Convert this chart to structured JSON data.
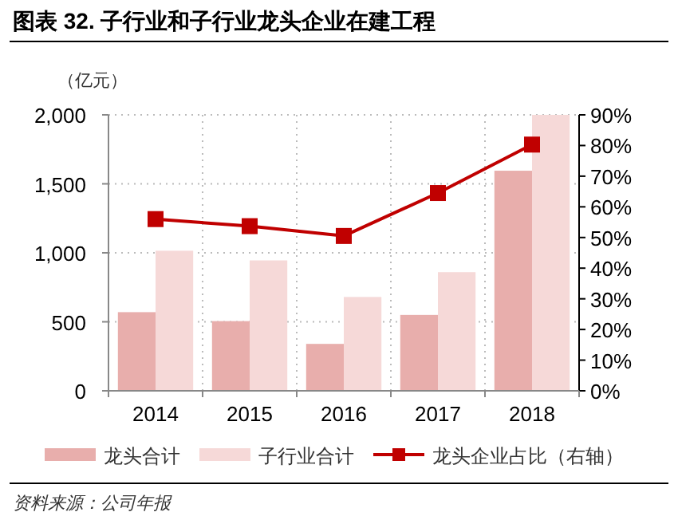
{
  "chart_data": {
    "type": "bar",
    "title": "图表 32. 子行业和子行业龙头企业在建工程",
    "ylabel": "（亿元）",
    "categories": [
      "2014",
      "2015",
      "2016",
      "2017",
      "2018"
    ],
    "series": [
      {
        "name": "龙头合计",
        "color": "#e8aeac",
        "values": [
          570,
          505,
          340,
          550,
          1595
        ]
      },
      {
        "name": "子行业合计",
        "color": "#f6d9d8",
        "values": [
          1015,
          945,
          680,
          860,
          2000
        ]
      },
      {
        "name": "龙头企业占比（右轴）",
        "type": "line",
        "axis": "y2",
        "color": "#c00000",
        "values": [
          56,
          53.7,
          50.5,
          64.5,
          80.3
        ]
      }
    ],
    "ylim": [
      0,
      2000
    ],
    "yticks": [
      {
        "value": 0,
        "label": "0"
      },
      {
        "value": 500,
        "label": "500"
      },
      {
        "value": 1000,
        "label": "1,000"
      },
      {
        "value": 1500,
        "label": "1,500"
      },
      {
        "value": 2000,
        "label": "2,000"
      }
    ],
    "y2lim": [
      0,
      90
    ],
    "y2ticks": [
      {
        "value": 0,
        "label": "0%"
      },
      {
        "value": 10,
        "label": "10%"
      },
      {
        "value": 20,
        "label": "20%"
      },
      {
        "value": 30,
        "label": "30%"
      },
      {
        "value": 40,
        "label": "40%"
      },
      {
        "value": 50,
        "label": "50%"
      },
      {
        "value": 60,
        "label": "60%"
      },
      {
        "value": 70,
        "label": "70%"
      },
      {
        "value": 80,
        "label": "80%"
      },
      {
        "value": 90,
        "label": "90%"
      }
    ],
    "grid": true,
    "legend": "bottom",
    "marker": "square",
    "line_style": "solid",
    "annotations": [
      "资料来源：公司年报"
    ]
  }
}
